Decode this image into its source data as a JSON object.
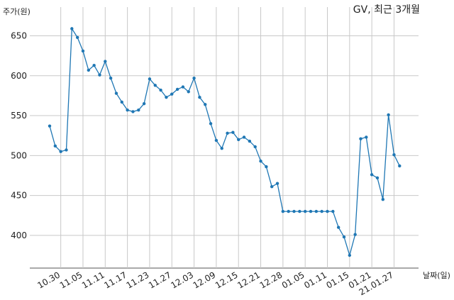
{
  "chart_data": {
    "type": "line",
    "title": "GV, 최근 3개월",
    "y_label": "주가(원)",
    "x_label": "날짜(일)",
    "categories": [
      null,
      null,
      "10.30",
      null,
      null,
      null,
      "11.05",
      null,
      null,
      null,
      "11.11",
      null,
      null,
      null,
      "11.17",
      null,
      null,
      null,
      "11.23",
      null,
      null,
      null,
      "11.27",
      null,
      null,
      null,
      "12.03",
      null,
      null,
      null,
      "12.09",
      null,
      null,
      null,
      "12.15",
      null,
      null,
      null,
      "12.21",
      null,
      null,
      null,
      "12.28",
      null,
      null,
      null,
      "01.05",
      null,
      null,
      null,
      "01.11",
      null,
      null,
      null,
      "01.15",
      null,
      null,
      null,
      "01.21",
      null,
      null,
      null,
      "21.01.27",
      null
    ],
    "series": [
      {
        "color": "#1f77b4",
        "values": [
          537,
          512,
          505,
          507,
          659,
          648,
          631,
          607,
          613,
          601,
          618,
          597,
          578,
          567,
          557,
          555,
          557,
          565,
          596,
          588,
          582,
          573,
          577,
          583,
          586,
          580,
          597,
          573,
          564,
          540,
          519,
          509,
          528,
          529,
          520,
          523,
          518,
          511,
          493,
          486,
          461,
          465,
          430,
          430,
          430,
          430,
          430,
          430,
          430,
          430,
          430,
          430,
          410,
          398,
          375,
          401,
          521,
          523,
          476,
          472,
          445,
          551,
          501,
          487
        ]
      }
    ],
    "ylim": [
      359,
      686
    ],
    "yticks": [
      400,
      450,
      500,
      550,
      600,
      650
    ],
    "grid": true
  }
}
